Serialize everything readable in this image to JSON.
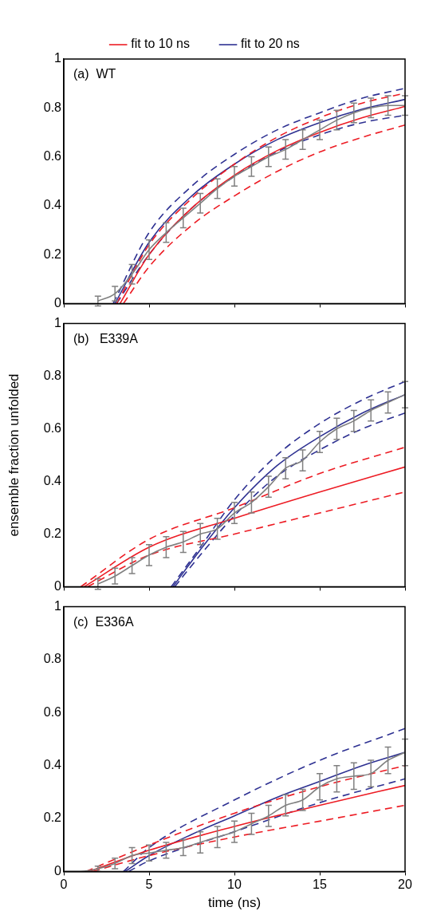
{
  "chart_data": [
    {
      "type": "line",
      "annotations": [
        "(a)  WT"
      ],
      "xlim": [
        0,
        20
      ],
      "xticks": [
        0,
        5,
        10,
        15,
        20
      ],
      "ylim": [
        0,
        1
      ],
      "yticks": [
        0,
        0.2,
        0.4,
        0.6,
        0.8,
        1
      ],
      "tick_labels": "y",
      "legend": "top",
      "marker": "none",
      "grid": false,
      "series": [
        {
          "color": "#808080",
          "x": [
            2,
            3,
            4,
            5,
            6,
            7,
            8,
            9,
            10,
            11,
            12,
            13,
            14,
            15,
            16,
            17,
            18,
            19,
            20
          ],
          "values": [
            0.01,
            0.04,
            0.12,
            0.22,
            0.29,
            0.35,
            0.41,
            0.47,
            0.52,
            0.56,
            0.6,
            0.63,
            0.67,
            0.71,
            0.75,
            0.78,
            0.8,
            0.81,
            0.81
          ],
          "errors": [
            0.02,
            0.03,
            0.04,
            0.04,
            0.04,
            0.04,
            0.04,
            0.04,
            0.04,
            0.04,
            0.04,
            0.04,
            0.04,
            0.04,
            0.04,
            0.04,
            0.04,
            0.04,
            0.04
          ]
        },
        {
          "name": "fit to 10 ns",
          "color": "#ed1c24",
          "x": [
            3.3,
            5,
            7.5,
            10,
            12.5,
            15,
            17.5,
            20
          ],
          "values": [
            0,
            0.2,
            0.39,
            0.525,
            0.625,
            0.7,
            0.76,
            0.806
          ]
        },
        {
          "color": "#ed1c24",
          "line_style": "dashed",
          "x": [
            3.1,
            5,
            7.5,
            10,
            12.5,
            15,
            17.5,
            20
          ],
          "values": [
            0,
            0.24,
            0.43,
            0.57,
            0.68,
            0.76,
            0.82,
            0.86
          ]
        },
        {
          "color": "#ed1c24",
          "line_style": "dashed",
          "x": [
            3.5,
            5,
            7.5,
            10,
            12.5,
            15,
            17.5,
            20
          ],
          "values": [
            0,
            0.15,
            0.32,
            0.44,
            0.54,
            0.62,
            0.68,
            0.73
          ]
        },
        {
          "name": "fit to 20 ns",
          "color": "#2e3192",
          "x": [
            3.0,
            5,
            7.5,
            10,
            12.5,
            15,
            17.5,
            20
          ],
          "values": [
            0,
            0.25,
            0.44,
            0.57,
            0.67,
            0.74,
            0.795,
            0.835
          ]
        },
        {
          "color": "#2e3192",
          "line_style": "dashed",
          "x": [
            2.9,
            5,
            7.5,
            10,
            12.5,
            15,
            17.5,
            20
          ],
          "values": [
            0,
            0.29,
            0.48,
            0.61,
            0.71,
            0.78,
            0.84,
            0.88
          ]
        },
        {
          "color": "#2e3192",
          "line_style": "dashed",
          "x": [
            3.1,
            5,
            7.5,
            10,
            12.5,
            15,
            17.5,
            20
          ],
          "values": [
            0,
            0.2,
            0.39,
            0.52,
            0.62,
            0.69,
            0.74,
            0.77
          ]
        }
      ]
    },
    {
      "type": "line",
      "annotations": [
        "(b)   E339A"
      ],
      "ylabel": "ensemble fraction unfolded",
      "xlim": [
        0,
        20
      ],
      "xticks": [
        0,
        5,
        10,
        15,
        20
      ],
      "ylim": [
        0,
        1
      ],
      "yticks": [
        0,
        0.2,
        0.4,
        0.6,
        0.8,
        1
      ],
      "tick_labels": "y",
      "marker": "none",
      "grid": false,
      "series": [
        {
          "color": "#808080",
          "x": [
            2,
            3,
            4,
            5,
            6,
            7,
            8,
            9,
            10,
            11,
            12,
            13,
            14,
            15,
            16,
            17,
            18,
            19,
            20
          ],
          "values": [
            0.01,
            0.04,
            0.08,
            0.12,
            0.15,
            0.17,
            0.2,
            0.22,
            0.28,
            0.32,
            0.38,
            0.45,
            0.48,
            0.55,
            0.6,
            0.63,
            0.67,
            0.7,
            0.73
          ],
          "errors": [
            0.02,
            0.03,
            0.03,
            0.04,
            0.04,
            0.04,
            0.04,
            0.04,
            0.04,
            0.04,
            0.04,
            0.04,
            0.04,
            0.04,
            0.04,
            0.04,
            0.04,
            0.04,
            0.05
          ]
        },
        {
          "color": "#ed1c24",
          "x": [
            1.2,
            5,
            10,
            15,
            20
          ],
          "values": [
            0,
            0.15,
            0.26,
            0.36,
            0.455
          ]
        },
        {
          "color": "#ed1c24",
          "line_style": "dashed",
          "x": [
            1.0,
            5,
            10,
            15,
            20
          ],
          "values": [
            0,
            0.18,
            0.3,
            0.43,
            0.53
          ]
        },
        {
          "color": "#ed1c24",
          "line_style": "dashed",
          "x": [
            1.4,
            5,
            10,
            15,
            20
          ],
          "values": [
            0,
            0.12,
            0.2,
            0.28,
            0.36
          ]
        },
        {
          "color": "#2e3192",
          "x": [
            6.4,
            8,
            10,
            12.5,
            15,
            17.5,
            20
          ],
          "values": [
            0,
            0.14,
            0.3,
            0.46,
            0.57,
            0.66,
            0.73
          ]
        },
        {
          "color": "#2e3192",
          "line_style": "dashed",
          "x": [
            6.3,
            8,
            10,
            12.5,
            15,
            17.5,
            20
          ],
          "values": [
            0,
            0.15,
            0.33,
            0.5,
            0.62,
            0.71,
            0.78
          ]
        },
        {
          "color": "#2e3192",
          "line_style": "dashed",
          "x": [
            6.5,
            8,
            10,
            12.5,
            15,
            17.5,
            20
          ],
          "values": [
            0,
            0.12,
            0.27,
            0.42,
            0.52,
            0.6,
            0.66
          ]
        }
      ]
    },
    {
      "type": "line",
      "annotations": [
        "(c)  E336A"
      ],
      "xlabel": "time (ns)",
      "xlim": [
        0,
        20
      ],
      "xticks": [
        0,
        5,
        10,
        15,
        20
      ],
      "ylim": [
        0,
        1
      ],
      "yticks": [
        0,
        0.2,
        0.4,
        0.6,
        0.8,
        1
      ],
      "marker": "none",
      "grid": false,
      "series": [
        {
          "color": "#808080",
          "x": [
            0,
            1,
            2,
            3,
            4,
            5,
            6,
            7,
            8,
            9,
            10,
            11,
            12,
            13,
            14,
            15,
            16,
            17,
            18,
            19,
            20
          ],
          "values": [
            0,
            0,
            0.01,
            0.03,
            0.06,
            0.07,
            0.08,
            0.09,
            0.11,
            0.13,
            0.15,
            0.18,
            0.21,
            0.25,
            0.27,
            0.32,
            0.35,
            0.36,
            0.37,
            0.42,
            0.45
          ],
          "errors": [
            null,
            null,
            0.01,
            0.02,
            0.03,
            0.03,
            0.03,
            0.03,
            0.04,
            0.04,
            0.04,
            0.04,
            0.04,
            0.04,
            0.04,
            0.05,
            0.05,
            0.05,
            0.05,
            0.05,
            0.05
          ]
        },
        {
          "color": "#ed1c24",
          "x": [
            1.5,
            5,
            10,
            15,
            20
          ],
          "values": [
            0,
            0.08,
            0.17,
            0.25,
            0.325
          ]
        },
        {
          "color": "#ed1c24",
          "line_style": "dashed",
          "x": [
            1.3,
            5,
            10,
            15,
            20
          ],
          "values": [
            0,
            0.1,
            0.22,
            0.32,
            0.4
          ]
        },
        {
          "color": "#ed1c24",
          "line_style": "dashed",
          "x": [
            1.7,
            5,
            10,
            15,
            20
          ],
          "values": [
            0,
            0.06,
            0.13,
            0.19,
            0.25
          ]
        },
        {
          "color": "#2e3192",
          "x": [
            3.6,
            5,
            7.5,
            10,
            12.5,
            15,
            17.5,
            20
          ],
          "values": [
            0,
            0.06,
            0.14,
            0.21,
            0.28,
            0.34,
            0.4,
            0.45
          ]
        },
        {
          "color": "#2e3192",
          "line_style": "dashed",
          "x": [
            3.5,
            5,
            10,
            15,
            20
          ],
          "values": [
            0,
            0.09,
            0.27,
            0.42,
            0.54
          ]
        },
        {
          "color": "#2e3192",
          "line_style": "dashed",
          "x": [
            3.8,
            5,
            10,
            15,
            20
          ],
          "values": [
            0,
            0.04,
            0.15,
            0.26,
            0.35
          ]
        }
      ]
    }
  ]
}
